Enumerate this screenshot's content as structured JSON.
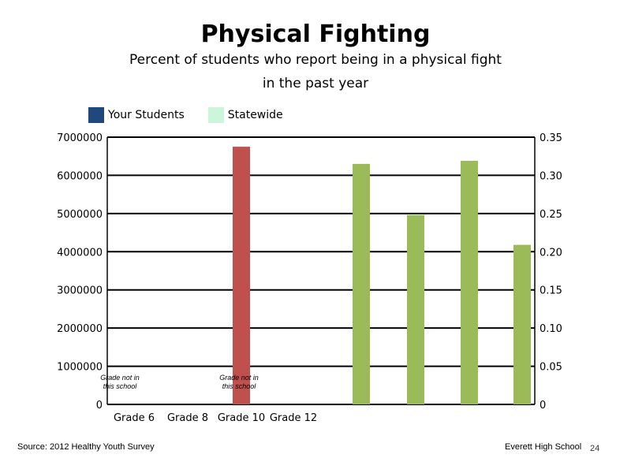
{
  "header": {
    "title": "Physical Fighting",
    "subtitle_line1": "Percent of students who report being in a physical fight",
    "subtitle_line2": "in the past year"
  },
  "legend": {
    "items": [
      {
        "label": "Your Students",
        "color": "#1f497d"
      },
      {
        "label": "Statewide",
        "color": "#ccf5dc"
      }
    ]
  },
  "footer": {
    "source": "Source: 2012 Healthy Youth Survey",
    "school": "Everett High School",
    "page_number": "24"
  },
  "chart_data": {
    "type": "bar",
    "categories": [
      "Grade 6",
      "Grade 8",
      "Grade 10",
      "Grade 12"
    ],
    "left_axis": {
      "ylim": [
        0,
        7000000
      ],
      "ticks": [
        "0",
        "1000000",
        "2000000",
        "3000000",
        "4000000",
        "5000000",
        "6000000",
        "7000000"
      ]
    },
    "right_axis": {
      "ylim": [
        0,
        0.35
      ],
      "ticks": [
        "0",
        "0.05",
        "0.10",
        "0.15",
        "0.20",
        "0.25",
        "0.30",
        "0.35"
      ]
    },
    "left_axis_bars": [
      {
        "category": "Grade 10",
        "value": 6750000,
        "color": "#c0504d"
      }
    ],
    "right_axis_bars": {
      "color": "#9bbb59",
      "values": [
        0.315,
        0.248,
        0.319,
        0.209
      ]
    },
    "annotations": [
      {
        "category": "Grade 6",
        "text_line1": "Grade not in",
        "text_line2": "this school"
      },
      {
        "category": "Grade 10",
        "text_line1": "Grade not in",
        "text_line2": "this school"
      }
    ],
    "grid": true
  }
}
